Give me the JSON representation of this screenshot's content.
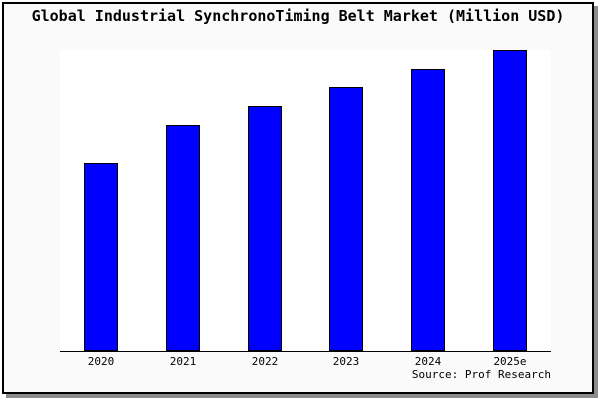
{
  "chart_data": {
    "type": "bar",
    "title": "Global Industrial SynchronoTiming Belt Market (Million USD)",
    "categories": [
      "2020",
      "2021",
      "2022",
      "2023",
      "2024",
      "2025e"
    ],
    "values": [
      62.5,
      75.1,
      81.4,
      87.7,
      93.7,
      100
    ],
    "value_scale_note": "no y-axis ticks shown; values normalized so 2025e = 100",
    "xlabel": "",
    "ylabel": "",
    "ylim": [
      0,
      100
    ],
    "grid": false,
    "legend": false,
    "y_axis_shown": false,
    "source": "Source: Prof Research",
    "colors": {
      "bar_fill": "#0000ff",
      "bar_border": "#000000",
      "axis": "#000000",
      "page_background": "#fafafa",
      "plot_background": "#ffffff",
      "frame_border": "#000000",
      "frame_shadow": "#8c8c8c",
      "text": "#000000"
    }
  }
}
